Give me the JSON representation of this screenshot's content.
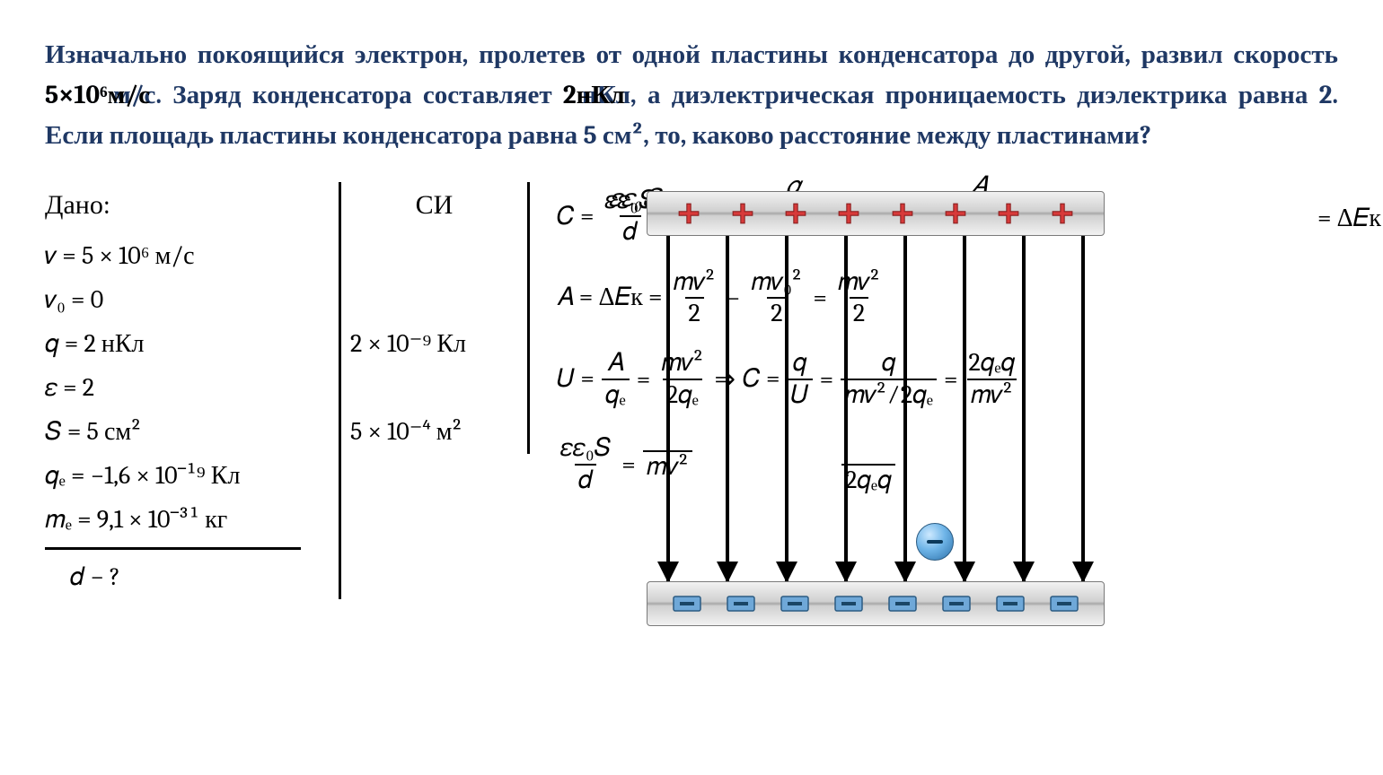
{
  "problem": {
    "part1": "Изначально покоящийся электрон, пролетев от одной пластины конденсатора до другой, развил скорость",
    "speed_under": "5×10⁶ м/с",
    "speed_over": "5×10⁶м/с",
    "part2": ". Заряд конденсатора составляет",
    "charge_under": "2 нКл",
    "charge_over": "2нКл",
    "part3": ", а диэлектрическая проницаемость диэлектрика равна 2. Если площадь пластины конденсатора равна 5 см², то, каково расстояние между пластинами?",
    "color": "#1f3864",
    "fontsize": 29
  },
  "given": {
    "header": "Дано:",
    "lines": {
      "v": "𝑣 = 5 × 10⁶ м/с",
      "v0": "𝑣₀ = 0",
      "q": "𝑞 = 2 нКл",
      "eps": "𝜀 = 2",
      "S": "𝑆 = 5 см²",
      "qe": "𝑞ₑ = −1,6 × 10⁻¹⁹ Кл",
      "me": "𝑚ₑ = 9,1 × 10⁻³¹ кг"
    },
    "find": "𝑑 − ?"
  },
  "si": {
    "header": "СИ",
    "q": "2 × 10⁻⁹ Кл",
    "S": "5 × 10⁻⁴ м²"
  },
  "equations": {
    "row1_lhs": "𝐶 =",
    "row1_f1_num": "𝜀𝜀₀𝑆",
    "row1_f1_den": "𝑑",
    "row1_mid": "𝑞",
    "row1_mid2": "𝐴",
    "row1_rhs": "= Δ𝐸к",
    "row2_lhs": "𝐴 = Δ𝐸к =",
    "row2_f1_num": "𝑚𝑣²",
    "row2_f1_den": "2",
    "row2_minus": "−",
    "row2_f2_num": "𝑚𝑣₀²",
    "row2_f2_den": "2",
    "row2_eq": "=",
    "row2_f3_num": "𝑚𝑣²",
    "row2_f3_den": "2",
    "row3_lhs": "𝑈 =",
    "row3_f1_num": "𝐴",
    "row3_f1_den": "𝑞ₑ",
    "row3_eq1": "=",
    "row3_f2_num": "𝑚𝑣²",
    "row3_f2_den": "2𝑞ₑ",
    "row3_arr": "⇒",
    "row3_C": "𝐶 =",
    "row3_f3_num": "𝑞",
    "row3_f3_den": "𝑈",
    "row3_eq2": "=",
    "row3_f4_num": "𝑞",
    "row3_f4_den": "𝑚𝑣² ∕ 2𝑞ₑ",
    "row3_eq3": "=",
    "row3_f5_num": "2𝑞ₑ𝑞",
    "row3_f5_den": "𝑚𝑣²",
    "row4_f1_num": "𝜀𝜀₀𝑆",
    "row4_f1_den": "𝑑",
    "row4_eq": "=",
    "row4_f2_num": " ",
    "row4_f2_den": "𝑚𝑣²",
    "row4_f3_den": "2𝑞ₑ𝑞"
  },
  "capacitor": {
    "plus_count": 8,
    "minus_count": 8,
    "arrow_count": 8,
    "plate_color_top": "#d0d0d0",
    "plus_color": "#d83a3a",
    "minus_fill": "#6fa8d8",
    "minus_border": "#2b5b82",
    "electron_gradient": [
      "#cde9ff",
      "#6fb5e8",
      "#2b6fa8"
    ]
  },
  "stray": {
    "qe_tail": "𝑞ₑ",
    "slash2qe": "∕ 2𝑞ₑ"
  }
}
